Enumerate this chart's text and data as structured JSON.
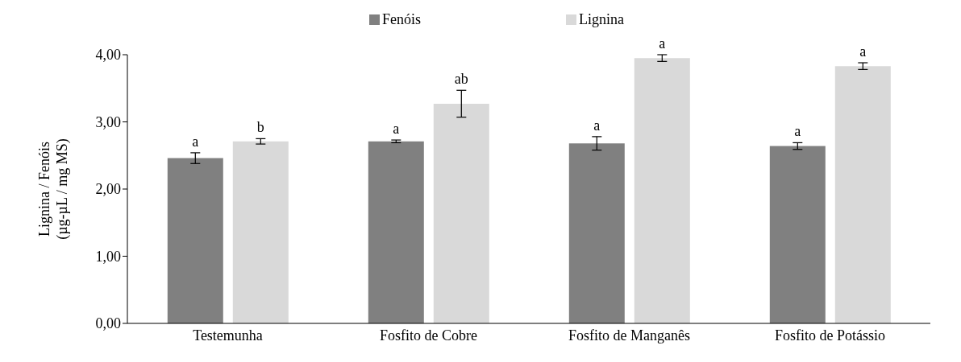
{
  "chart_data": {
    "type": "bar",
    "ylabel": "Lignina  / Fenóis\n(µg-µL / mg MS)",
    "categories": [
      "Testemunha",
      "Fosfito de Cobre",
      "Fosfito de Manganês",
      "Fosfito de Potássio"
    ],
    "series": [
      {
        "name": "Fenóis",
        "color": "#808080",
        "values": [
          2.46,
          2.71,
          2.68,
          2.64
        ],
        "errors": [
          0.08,
          0.02,
          0.1,
          0.05
        ],
        "value_labels": [
          "a",
          "a",
          "a",
          "a"
        ]
      },
      {
        "name": "Lignina",
        "color": "#d9d9d9",
        "values": [
          2.71,
          3.27,
          3.95,
          3.83
        ],
        "errors": [
          0.04,
          0.2,
          0.05,
          0.05
        ],
        "value_labels": [
          "b",
          "ab",
          "a",
          "a"
        ]
      }
    ],
    "ylim": [
      0,
      4
    ],
    "yticks": [
      {
        "value": 0,
        "label": "0,00"
      },
      {
        "value": 1,
        "label": "1,00"
      },
      {
        "value": 2,
        "label": "2,00"
      },
      {
        "value": 3,
        "label": "3,00"
      },
      {
        "value": 4,
        "label": "4,00"
      }
    ],
    "grid": false,
    "legend": "top"
  }
}
